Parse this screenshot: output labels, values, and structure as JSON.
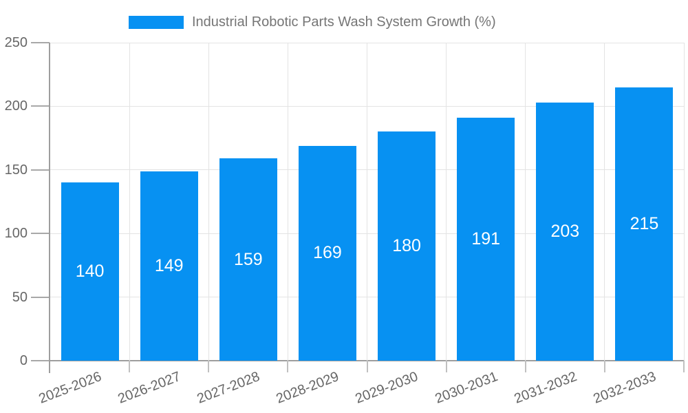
{
  "legend": {
    "label": "Industrial Robotic Parts Wash System Growth (%)"
  },
  "colors": {
    "bar": "#0791F2",
    "axis": "#9e9e9e",
    "tick_y": "#a8a8a8",
    "tick_x": "#c0c0c0",
    "grid": "#e3e3e3",
    "axis_text": "#666666",
    "legend_text": "#757575",
    "value_text": "#ffffff"
  },
  "chart_data": {
    "type": "bar",
    "title": "Industrial Robotic Parts Wash System Growth (%)",
    "xlabel": "",
    "ylabel": "",
    "categories": [
      "2025-2026",
      "2026-2027",
      "2027-2028",
      "2028-2029",
      "2029-2030",
      "2030-2031",
      "2031-2032",
      "2032-2033"
    ],
    "values": [
      140,
      149,
      159,
      169,
      180,
      191,
      203,
      215
    ],
    "ylim": [
      0,
      250
    ],
    "yticks": [
      0,
      50,
      100,
      150,
      200,
      250
    ],
    "grid": true,
    "legend_position": "top-center",
    "value_labels": "inside-center",
    "bar_color": "#0791F2"
  }
}
